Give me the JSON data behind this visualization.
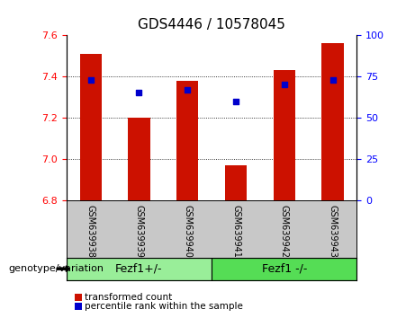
{
  "title": "GDS4446 / 10578045",
  "samples": [
    "GSM639938",
    "GSM639939",
    "GSM639940",
    "GSM639941",
    "GSM639942",
    "GSM639943"
  ],
  "bar_values": [
    7.51,
    7.2,
    7.38,
    6.97,
    7.43,
    7.56
  ],
  "percentile_values": [
    73,
    65,
    67,
    60,
    70,
    73
  ],
  "bar_bottom": 6.8,
  "ylim_left": [
    6.8,
    7.6
  ],
  "ylim_right": [
    0,
    100
  ],
  "yticks_left": [
    6.8,
    7.0,
    7.2,
    7.4,
    7.6
  ],
  "yticks_right": [
    0,
    25,
    50,
    75,
    100
  ],
  "bar_color": "#cc1100",
  "dot_color": "#0000cc",
  "groups": [
    {
      "label": "Fezf1+/-",
      "samples": [
        0,
        1,
        2
      ],
      "color": "#99ee99"
    },
    {
      "label": "Fezf1 -/-",
      "samples": [
        3,
        4,
        5
      ],
      "color": "#55dd55"
    }
  ],
  "group_label": "genotype/variation",
  "legend_items": [
    {
      "label": "transformed count",
      "color": "#cc1100"
    },
    {
      "label": "percentile rank within the sample",
      "color": "#0000cc"
    }
  ],
  "xlabel_area_color": "#c8c8c8",
  "bar_width": 0.45,
  "title_fontsize": 11,
  "tick_fontsize": 8,
  "sample_fontsize": 7,
  "legend_fontsize": 7.5,
  "group_fontsize": 9,
  "gridline_ticks": [
    7.0,
    7.2,
    7.4
  ]
}
